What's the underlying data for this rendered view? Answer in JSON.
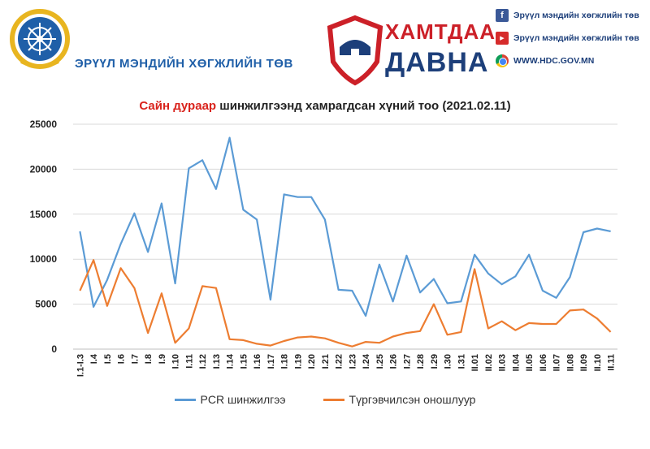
{
  "header": {
    "org_name": "ЭРҮҮЛ МЭНДИЙН ХӨГЖЛИЙН ТӨВ",
    "campaign_line1": "ХАМТДАА",
    "campaign_line2": "ДАВНА",
    "social": [
      {
        "icon": "facebook-icon",
        "text": "Эрүүл мэндийн хөгжлийн төв"
      },
      {
        "icon": "youtube-icon",
        "text": "Эрүүл мэндийн хөгжлийн төв"
      },
      {
        "icon": "chrome-icon",
        "text": "WWW.HDC.GOV.MN"
      }
    ]
  },
  "colors": {
    "pcr": "#5b9bd5",
    "rapid": "#ed7d31",
    "accent_red": "#d9231c",
    "brand_blue": "#1f5fa8"
  },
  "chart_data": {
    "type": "line",
    "title_highlight": "Сайн дураар",
    "title_rest": " шинжилгээнд хамрагдсан хүний тоо (2021.02.11)",
    "categories": [
      "I.1-I.3",
      "I.4",
      "I.5",
      "I.6",
      "I.7",
      "I.8",
      "I.9",
      "I.10",
      "I.11",
      "I.12",
      "I.13",
      "I.14",
      "I.15",
      "I.16",
      "I.17",
      "I.18",
      "I.19",
      "I.20",
      "I.21",
      "I.22",
      "I.23",
      "I.24",
      "I.25",
      "I.26",
      "I.27",
      "I.28",
      "I.29",
      "I.30",
      "I.31",
      "II.01",
      "II.02",
      "II.03",
      "II.04",
      "II.05",
      "II.06",
      "II.07",
      "II.08",
      "II.09",
      "II.10",
      "II.11"
    ],
    "series": [
      {
        "name": "PCR шинжилгээ",
        "values": [
          13100,
          4700,
          7700,
          11700,
          15100,
          10800,
          16200,
          7300,
          20100,
          21000,
          17800,
          23500,
          15500,
          14400,
          5500,
          17200,
          16900,
          16900,
          14400,
          6600,
          6500,
          3700,
          9400,
          5300,
          10400,
          6300,
          7800,
          5100,
          5300,
          10500,
          8400,
          7200,
          8100,
          10500,
          6500,
          5700,
          8000,
          13000,
          13400,
          13100
        ]
      },
      {
        "name": "Түргэвчилсэн оношлуур",
        "values": [
          6500,
          9900,
          4800,
          9000,
          6800,
          1800,
          6200,
          700,
          2300,
          7000,
          6800,
          1100,
          1000,
          600,
          400,
          900,
          1300,
          1400,
          1200,
          700,
          300,
          800,
          700,
          1400,
          1800,
          2000,
          5000,
          1600,
          1900,
          8900,
          2300,
          3100,
          2100,
          2900,
          2800,
          2800,
          4300,
          4400,
          3400,
          1900
        ]
      }
    ],
    "yticks": [
      "25000",
      "20000",
      "15000",
      "10000",
      "5000",
      "0"
    ],
    "ylim": [
      0,
      25000
    ],
    "grid": "horizontal",
    "legend_position": "bottom"
  }
}
